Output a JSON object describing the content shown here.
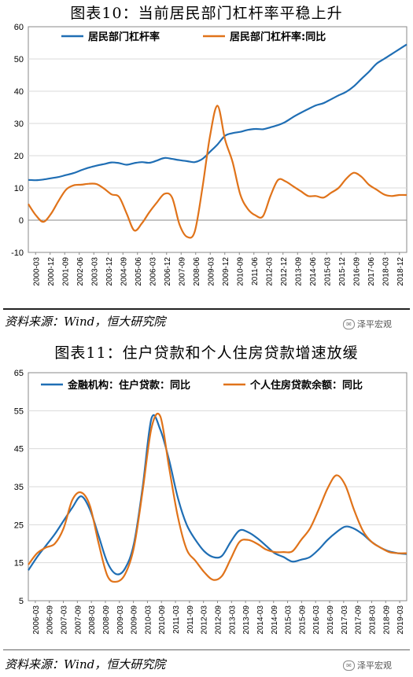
{
  "figures": [
    {
      "title": "图表10：当前居民部门杠杆率平稳上升",
      "source": "资料来源：Wind，恒大研究院",
      "watermark": "泽平宏观"
    },
    {
      "title": "图表11：住户贷款和个人住房贷款增速放缓",
      "source": "资料来源：Wind，恒大研究院",
      "watermark": "泽平宏观"
    }
  ],
  "colors": {
    "blue": "#1f6eb4",
    "orange": "#e0731a",
    "grid": "#d9d9d9",
    "axis": "#888888"
  },
  "chart_data": [
    {
      "type": "line",
      "ylim": [
        -10,
        60
      ],
      "yticks": [
        -10,
        0,
        10,
        20,
        30,
        40,
        50,
        60
      ],
      "x_ticklabels": [
        "2000-03",
        "2000-12",
        "2001-09",
        "2002-06",
        "2003-03",
        "2003-12",
        "2004-09",
        "2005-06",
        "2006-03",
        "2006-12",
        "2007-09",
        "2008-06",
        "2009-03",
        "2009-12",
        "2010-09",
        "2011-06",
        "2012-03",
        "2012-12",
        "2013-09",
        "2014-06",
        "2015-03",
        "2015-12",
        "2016-09",
        "2017-06",
        "2018-03",
        "2018-12"
      ],
      "legend_position": "top-left",
      "series": [
        {
          "name": "居民部门杠杆率",
          "color": "#1f6eb4",
          "values": [
            12.5,
            12.4,
            12.6,
            13.0,
            13.4,
            14.0,
            14.6,
            15.5,
            16.3,
            16.9,
            17.4,
            17.9,
            17.7,
            17.2,
            17.7,
            18.0,
            17.8,
            18.5,
            19.3,
            19.0,
            18.6,
            18.3,
            18.0,
            19.0,
            21.2,
            23.5,
            26.2,
            27.0,
            27.4,
            28.0,
            28.3,
            28.2,
            28.8,
            29.5,
            30.5,
            32.0,
            33.3,
            34.5,
            35.6,
            36.3,
            37.5,
            38.7,
            39.8,
            41.5,
            43.8,
            46.0,
            48.5,
            50.0,
            51.5,
            53.0,
            54.5
          ]
        },
        {
          "name": "居民部门杠杆率:同比",
          "color": "#e0731a",
          "values": [
            5.0,
            1.5,
            -0.5,
            2.0,
            6.0,
            9.5,
            10.8,
            11.0,
            11.3,
            11.2,
            9.8,
            8.0,
            7.2,
            2.0,
            -3.2,
            -1.0,
            2.5,
            5.5,
            8.2,
            7.0,
            -1.5,
            -5.2,
            -3.5,
            10.0,
            26.0,
            35.5,
            25.0,
            18.0,
            8.0,
            3.5,
            1.5,
            1.2,
            7.5,
            12.5,
            12.0,
            10.5,
            9.0,
            7.5,
            7.5,
            7.0,
            8.5,
            10.0,
            12.8,
            14.7,
            13.5,
            11.0,
            9.5,
            8.0,
            7.5,
            7.8,
            7.8
          ]
        }
      ]
    },
    {
      "type": "line",
      "ylim": [
        5,
        65
      ],
      "yticks": [
        5,
        15,
        25,
        35,
        45,
        55,
        65
      ],
      "x_ticklabels": [
        "2006-03",
        "2006-09",
        "2007-03",
        "2007-09",
        "2008-03",
        "2008-09",
        "2009-03",
        "2009-09",
        "2010-03",
        "2010-09",
        "2011-03",
        "2011-09",
        "2012-03",
        "2012-09",
        "2013-03",
        "2013-09",
        "2014-03",
        "2014-09",
        "2015-03",
        "2015-09",
        "2016-03",
        "2016-09",
        "2017-03",
        "2017-09",
        "2018-03",
        "2018-09",
        "2019-03"
      ],
      "legend_position": "top-left",
      "series": [
        {
          "name": "金融机构：住户贷款：同比",
          "color": "#1f6eb4",
          "values": [
            13.0,
            16.5,
            19.5,
            22.5,
            26.0,
            29.5,
            32.5,
            29.0,
            22.0,
            15.0,
            12.0,
            13.5,
            20.0,
            35.0,
            53.0,
            50.0,
            42.0,
            32.0,
            25.0,
            21.0,
            18.0,
            16.5,
            16.8,
            20.5,
            23.5,
            23.0,
            21.5,
            19.5,
            17.5,
            16.5,
            15.3,
            15.8,
            16.5,
            18.5,
            21.0,
            23.0,
            24.5,
            24.0,
            22.5,
            20.5,
            19.0,
            18.0,
            17.5,
            17.3
          ]
        },
        {
          "name": "个人住房贷款余额：同比",
          "color": "#e0731a",
          "values": [
            14.5,
            17.5,
            19.0,
            20.0,
            24.0,
            31.5,
            33.5,
            30.0,
            20.0,
            11.5,
            10.0,
            12.0,
            19.0,
            34.0,
            50.5,
            53.5,
            40.0,
            27.0,
            18.5,
            15.5,
            12.5,
            10.5,
            11.5,
            16.0,
            20.5,
            21.0,
            20.0,
            18.5,
            17.8,
            17.8,
            18.0,
            21.0,
            24.0,
            29.0,
            34.5,
            38.0,
            35.5,
            29.0,
            23.5,
            20.5,
            19.0,
            17.8,
            17.5,
            17.5
          ]
        }
      ]
    }
  ]
}
